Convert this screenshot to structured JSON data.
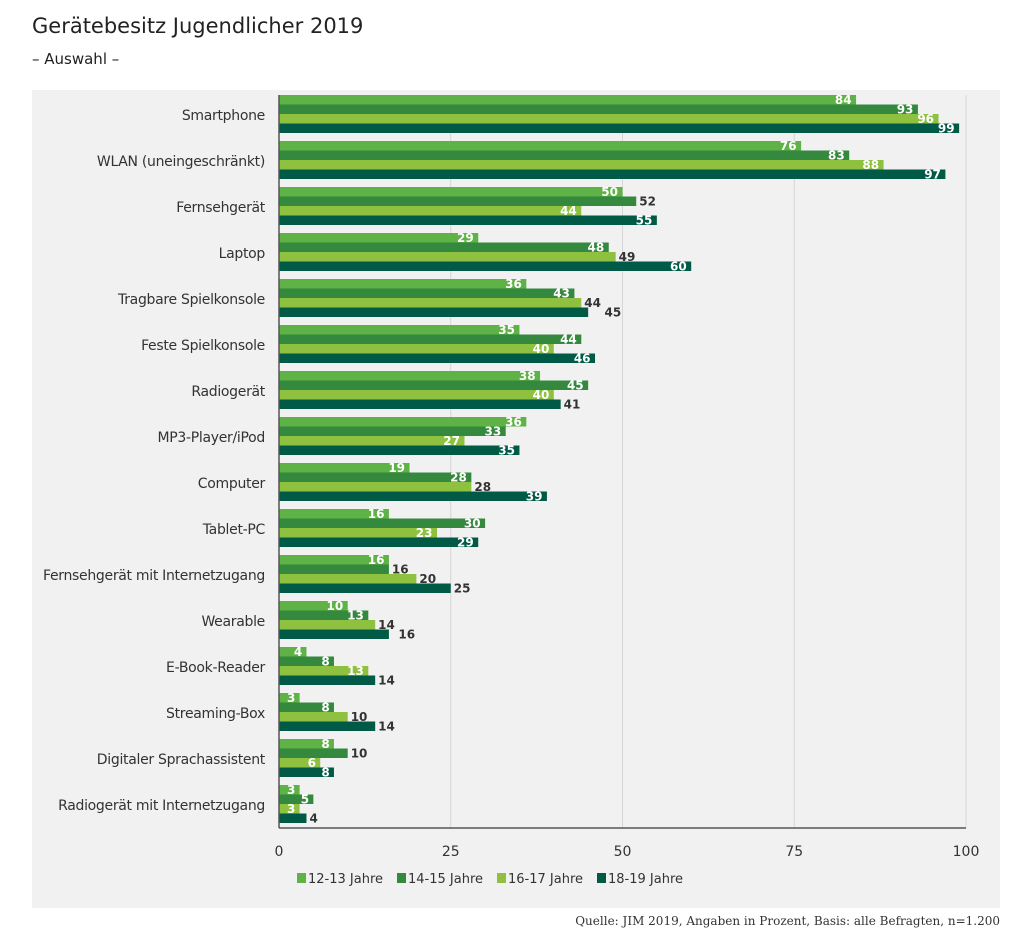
{
  "chart_data": {
    "type": "bar",
    "orientation": "horizontal",
    "title": "Gerätebesitz Jugendlicher 2019",
    "subtitle": "– Auswahl –",
    "source": "Quelle: JIM 2019, Angaben in Prozent, Basis: alle Befragten, n=1.200",
    "categories": [
      "Smartphone",
      "WLAN (uneingeschränkt)",
      "Fernsehgerät",
      "Laptop",
      "Tragbare Spielkonsole",
      "Feste Spielkonsole",
      "Radiogerät",
      "MP3-Player/iPod",
      "Computer",
      "Tablet-PC",
      "Fernsehgerät mit Internetzugang",
      "Wearable",
      "E-Book-Reader",
      "Streaming-Box",
      "Digitaler Sprachassistent",
      "Radiogerät mit Internetzugang"
    ],
    "series": [
      {
        "name": "12-13 Jahre",
        "color": "#5fb346",
        "values": [
          84,
          76,
          50,
          29,
          36,
          35,
          38,
          36,
          19,
          16,
          16,
          10,
          4,
          3,
          8,
          3
        ]
      },
      {
        "name": "14-15 Jahre",
        "color": "#35893f",
        "values": [
          93,
          83,
          52,
          48,
          43,
          44,
          45,
          33,
          28,
          30,
          16,
          13,
          8,
          8,
          10,
          5
        ]
      },
      {
        "name": "16-17 Jahre",
        "color": "#8dc13f",
        "values": [
          96,
          88,
          44,
          49,
          44,
          40,
          40,
          27,
          28,
          23,
          20,
          14,
          13,
          10,
          6,
          3
        ]
      },
      {
        "name": "18-19 Jahre",
        "color": "#005a46",
        "values": [
          99,
          97,
          55,
          60,
          45,
          46,
          41,
          35,
          39,
          29,
          25,
          16,
          14,
          14,
          8,
          4
        ]
      }
    ],
    "xlim": [
      0,
      100
    ],
    "xticks": [
      "0",
      "25",
      "50",
      "75",
      "100"
    ],
    "grid": true,
    "legend": "bottom"
  }
}
